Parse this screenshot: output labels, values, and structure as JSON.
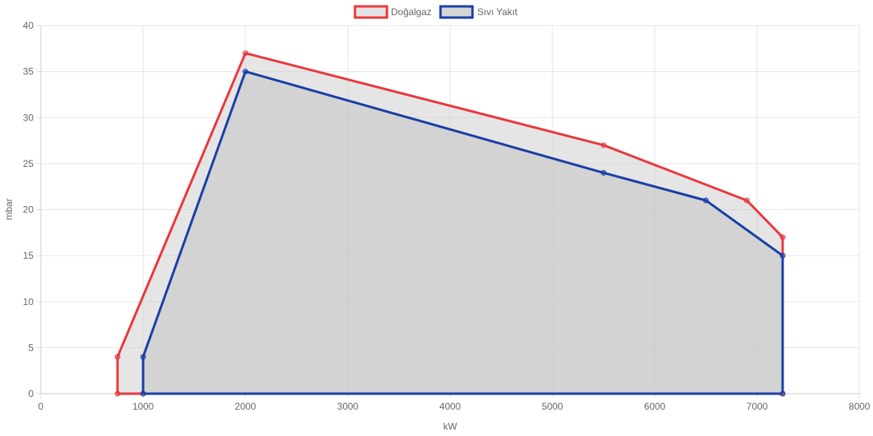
{
  "chart_data": {
    "type": "area",
    "xlabel": "kW",
    "ylabel": "mbar",
    "xlim": [
      0,
      8000
    ],
    "ylim": [
      0,
      40
    ],
    "x_ticks": [
      0,
      1000,
      2000,
      3000,
      4000,
      5000,
      6000,
      7000,
      8000
    ],
    "y_ticks": [
      0,
      5,
      10,
      15,
      20,
      25,
      30,
      35,
      40
    ],
    "grid": true,
    "legend_position": "top-center",
    "series": [
      {
        "name": "Doğalgaz",
        "color": "#e8383d",
        "fill": "#cfcfcf",
        "points": [
          [
            750,
            0
          ],
          [
            750,
            4
          ],
          [
            2000,
            37
          ],
          [
            5500,
            27
          ],
          [
            6900,
            21
          ],
          [
            7250,
            17
          ],
          [
            7250,
            0
          ],
          [
            750,
            0
          ]
        ]
      },
      {
        "name": "Sıvı Yakıt",
        "color": "#1a3ea8",
        "fill": "#c4c4c4",
        "points": [
          [
            1000,
            0
          ],
          [
            1000,
            4
          ],
          [
            2000,
            35
          ],
          [
            5500,
            24
          ],
          [
            6500,
            21
          ],
          [
            7250,
            15
          ],
          [
            7250,
            0
          ],
          [
            1000,
            0
          ]
        ]
      }
    ]
  }
}
